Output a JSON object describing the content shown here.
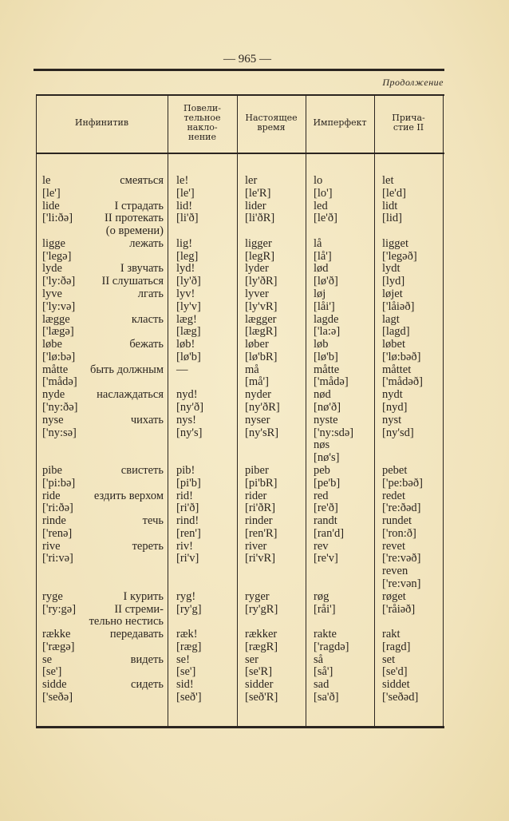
{
  "page_number": "— 965 —",
  "continuation": "Продолжение",
  "headers": [
    "Инфинитив",
    "Повели-\nтельное\nнакло-\nнение",
    "Настоящее\nвремя",
    "Имперфект",
    "Прича-\nстие II"
  ],
  "lines": [
    [
      "le",
      "смеяться",
      "le!",
      "ler",
      "lo",
      "let"
    ],
    [
      "[le']",
      "",
      "[le']",
      "[le'R]",
      "[lo']",
      "[le'd]"
    ],
    [
      "lide",
      "I страдать",
      "lid!",
      "lider",
      "led",
      "lidt"
    ],
    [
      "['li:ðə]",
      "II протекать",
      "[li'ð]",
      "[li'ðR]",
      "[le'ð]",
      "[lid]"
    ],
    [
      "",
      "(о времени)",
      "",
      "",
      "",
      ""
    ],
    [
      "ligge",
      "лежать",
      "lig!",
      "ligger",
      "lå",
      "ligget"
    ],
    [
      "['legə]",
      "",
      "[leg]",
      "[legR]",
      "[lå']",
      "['legəð]"
    ],
    [
      "lyde",
      "I звучать",
      "lyd!",
      "lyder",
      "lød",
      "lydt"
    ],
    [
      "['ly:ðə]",
      "II слушаться",
      "[ly'ð]",
      "[ly'ðR]",
      "[lø'ð]",
      "[lyd]"
    ],
    [
      "lyve",
      "лгать",
      "lyv!",
      "lyver",
      "løj",
      "løjet"
    ],
    [
      "['ly:və]",
      "",
      "[ly'v]",
      "[ly'vR]",
      "[låi']",
      "['låiəð]"
    ],
    [
      "lægge",
      "класть",
      "læg!",
      "lægger",
      "lagde",
      "lagt"
    ],
    [
      "['lægə]",
      "",
      "[læg]",
      "[lægR]",
      "['la:ə]",
      "[lagd]"
    ],
    [
      "løbe",
      "бежать",
      "løb!",
      "løber",
      "løb",
      "løbet"
    ],
    [
      "['lø:bə]",
      "",
      "[lø'b]",
      "[lø'bR]",
      "[lø'b]",
      "['lø:bəð]"
    ],
    [
      "måtte",
      "быть должным",
      "—",
      "må",
      "måtte",
      "måttet"
    ],
    [
      "['mådə]",
      "",
      "",
      "[må']",
      "['mådə]",
      "['mådəð]"
    ],
    [
      "nyde",
      "наслаждаться",
      "nyd!",
      "nyder",
      "nød",
      "nydt"
    ],
    [
      "['ny:ðə]",
      "",
      "[ny'ð]",
      "[ny'ðR]",
      "[nø'ð]",
      "[nyd]"
    ],
    [
      "nyse",
      "чихать",
      "nys!",
      "nyser",
      "nyste",
      "nyst"
    ],
    [
      "['ny:sə]",
      "",
      "[ny's]",
      "[ny'sR]",
      "['ny:sdə]",
      "[ny'sd]"
    ],
    [
      "",
      "",
      "",
      "",
      "nøs",
      ""
    ],
    [
      "",
      "",
      "",
      "",
      "[nø's]",
      ""
    ],
    [
      "pibe",
      "свистеть",
      "pib!",
      "piber",
      "peb",
      "pebet"
    ],
    [
      "['pi:bə]",
      "",
      "[pi'b]",
      "[pi'bR]",
      "[pe'b]",
      "['pe:bəð]"
    ],
    [
      "ride",
      "ездить верхом",
      "rid!",
      "rider",
      "red",
      "redet"
    ],
    [
      "['ri:ðə]",
      "",
      "[ri'ð]",
      "[ri'ðR]",
      "[re'ð]",
      "['re:ðəd]"
    ],
    [
      "rinde",
      "течь",
      "rind!",
      "rinder",
      "randt",
      "rundet"
    ],
    [
      "['renə]",
      "",
      "[ren']",
      "[ren'R]",
      "[ran'd]",
      "['ron:ð]"
    ],
    [
      "rive",
      "тереть",
      "riv!",
      "river",
      "rev",
      "revet"
    ],
    [
      "['ri:və]",
      "",
      "[ri'v]",
      "[ri'vR]",
      "[re'v]",
      "['re:vəð]"
    ],
    [
      "",
      "",
      "",
      "",
      "",
      "reven"
    ],
    [
      "",
      "",
      "",
      "",
      "",
      "['re:vən]"
    ],
    [
      "ryge",
      "I курить",
      "ryg!",
      "ryger",
      "røg",
      "røget"
    ],
    [
      "['ry:gə]",
      "II стреми-",
      "[ry'g]",
      "[ry'gR]",
      "[råi']",
      "['råiəð]"
    ],
    [
      "",
      "тельно нестись",
      "",
      "",
      "",
      ""
    ],
    [
      "række",
      "передавать",
      "ræk!",
      "rækker",
      "rakte",
      "rakt"
    ],
    [
      "['rægə]",
      "",
      "[ræg]",
      "[rægR]",
      "['ragdə]",
      "[ragd]"
    ],
    [
      "se",
      "видеть",
      "se!",
      "ser",
      "så",
      "set"
    ],
    [
      "[se']",
      "",
      "[se']",
      "[se'R]",
      "[så']",
      "[se'd]"
    ],
    [
      "sidde",
      "сидеть",
      "sid!",
      "sidder",
      "sad",
      "siddet"
    ],
    [
      "['seðə]",
      "",
      "[seð']",
      "[seð'R]",
      "[sa'ð]",
      "['seðəd]"
    ]
  ]
}
